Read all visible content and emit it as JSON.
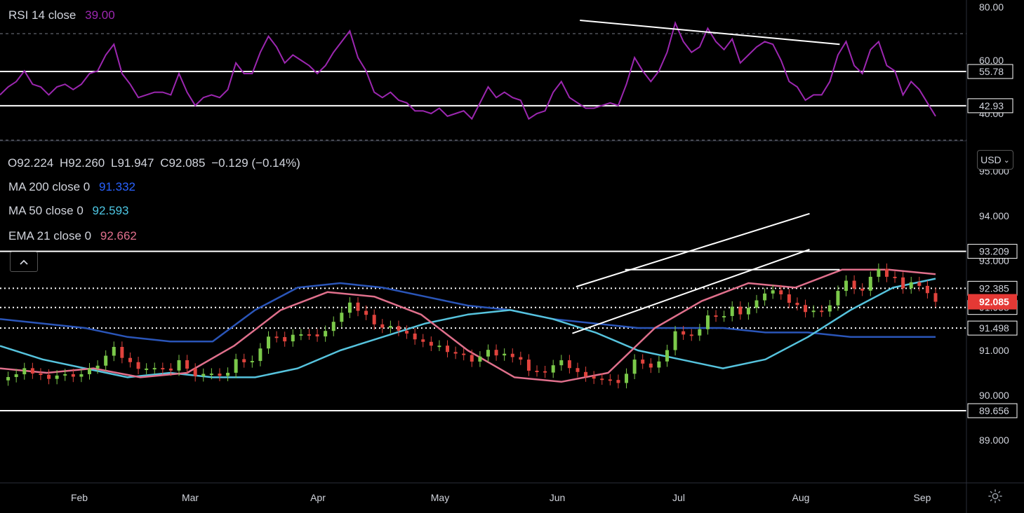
{
  "rsi_legend": {
    "name": "RSI 14 close",
    "value": "39.00"
  },
  "ohlc_legend": {
    "o_label": "O",
    "o": "92.224",
    "h_label": "H",
    "h": "92.260",
    "l_label": "L",
    "l": "91.947",
    "c_label": "C",
    "c": "92.085",
    "change": "−0.129 (−0.14%)"
  },
  "indicators": [
    {
      "name": "MA 200 close 0",
      "value": "91.332",
      "color": "#2962ff"
    },
    {
      "name": "MA 50 close 0",
      "value": "92.593",
      "color": "#4dc6e3"
    },
    {
      "name": "EMA 21 close 0",
      "value": "92.662",
      "color": "#e1708d"
    }
  ],
  "currency_button": "USD",
  "colors": {
    "up": "#7bc94a",
    "down": "#e0433d",
    "rsi": "#9c27b0",
    "ma200": "#2a55b8",
    "ma50": "#56c3dd",
    "ema21": "#e0708c",
    "last_price_bg": "#e53935"
  },
  "chart_data": [
    {
      "type": "line",
      "title": "RSI 14 close",
      "ylim": [
        30,
        80
      ],
      "yticks": [
        "80.00",
        "60.00",
        "40.00"
      ],
      "levels": [
        {
          "value": 55.78,
          "label": "55.78"
        },
        {
          "value": 42.93,
          "label": "42.93"
        }
      ],
      "dashed_levels": [
        70,
        30
      ],
      "trendline": {
        "from": [
          "Jun 19",
          75
        ],
        "to": [
          "Aug 27",
          66
        ]
      },
      "series": [
        {
          "values": [
            47,
            50,
            52,
            56,
            51,
            50,
            47,
            50,
            51,
            49,
            51,
            55,
            56,
            62,
            66,
            55,
            51,
            46,
            47,
            48,
            48,
            47,
            55,
            48,
            43,
            46,
            47,
            46,
            49,
            59,
            55,
            55,
            63,
            69,
            65,
            59,
            62,
            60,
            58,
            55,
            58,
            63,
            67,
            71,
            61,
            56,
            48,
            46,
            48,
            45,
            44,
            41,
            41,
            40,
            42,
            39,
            40,
            41,
            38,
            44,
            50,
            46,
            48,
            46,
            45,
            38,
            40,
            41,
            48,
            52,
            46,
            44,
            42,
            42,
            43,
            44,
            43,
            51,
            61,
            56,
            52,
            56,
            63,
            74,
            67,
            63,
            65,
            72,
            67,
            64,
            68,
            59,
            62,
            65,
            67,
            66,
            60,
            52,
            50,
            45,
            47,
            47,
            52,
            62,
            67,
            58,
            55,
            64,
            67,
            58,
            56,
            47,
            52,
            49,
            44,
            39
          ]
        }
      ]
    },
    {
      "type": "candlestick",
      "ylim": [
        88.5,
        95.3
      ],
      "yticks": [
        "95.000",
        "94.000",
        "93.000",
        "92.000",
        "91.000",
        "90.000",
        "89.000"
      ],
      "xticks": [
        "Feb",
        "Mar",
        "Apr",
        "May",
        "Jun",
        "Jul",
        "Aug",
        "Sep"
      ],
      "price_levels": [
        {
          "value": 93.209,
          "label": "93.209",
          "style": "solid"
        },
        {
          "value": 92.385,
          "label": "92.385",
          "style": "dotted"
        },
        {
          "value": 91.958,
          "label": "91.958",
          "style": "dotted"
        },
        {
          "value": 91.498,
          "label": "91.498",
          "style": "dotted"
        },
        {
          "value": 89.656,
          "label": "89.656",
          "style": "solid"
        }
      ],
      "last_price": "92.085",
      "channel": {
        "upper": {
          "from": [
            "Jun 18",
            92.42
          ],
          "to": [
            "Aug 19",
            94.05
          ]
        },
        "lower": {
          "from": [
            "Jun 17",
            91.38
          ],
          "to": [
            "Aug 19",
            93.25
          ]
        },
        "range_top": {
          "from": [
            "Jul 1",
            92.8
          ],
          "to": [
            "Aug 27",
            92.8
          ]
        }
      },
      "series": [
        {
          "name": "MA 200",
          "values": [
            91.7,
            91.6,
            91.5,
            91.3,
            91.2,
            91.2,
            91.9,
            92.4,
            92.5,
            92.4,
            92.2,
            92.0,
            91.9,
            91.7,
            91.6,
            91.5,
            91.5,
            91.5,
            91.4,
            91.4,
            91.3,
            91.3,
            91.3
          ]
        },
        {
          "name": "MA 50",
          "values": [
            91.1,
            90.8,
            90.6,
            90.4,
            90.5,
            90.4,
            90.4,
            90.6,
            91.0,
            91.3,
            91.6,
            91.8,
            91.9,
            91.7,
            91.4,
            91.0,
            90.8,
            90.6,
            90.8,
            91.3,
            91.9,
            92.4,
            92.6
          ]
        },
        {
          "name": "EMA 21",
          "values": [
            90.6,
            90.5,
            90.6,
            90.4,
            90.5,
            91.1,
            91.9,
            92.3,
            92.2,
            91.8,
            91.0,
            90.4,
            90.3,
            90.5,
            91.5,
            92.1,
            92.5,
            92.4,
            92.8,
            92.8,
            92.7
          ]
        }
      ]
    }
  ]
}
